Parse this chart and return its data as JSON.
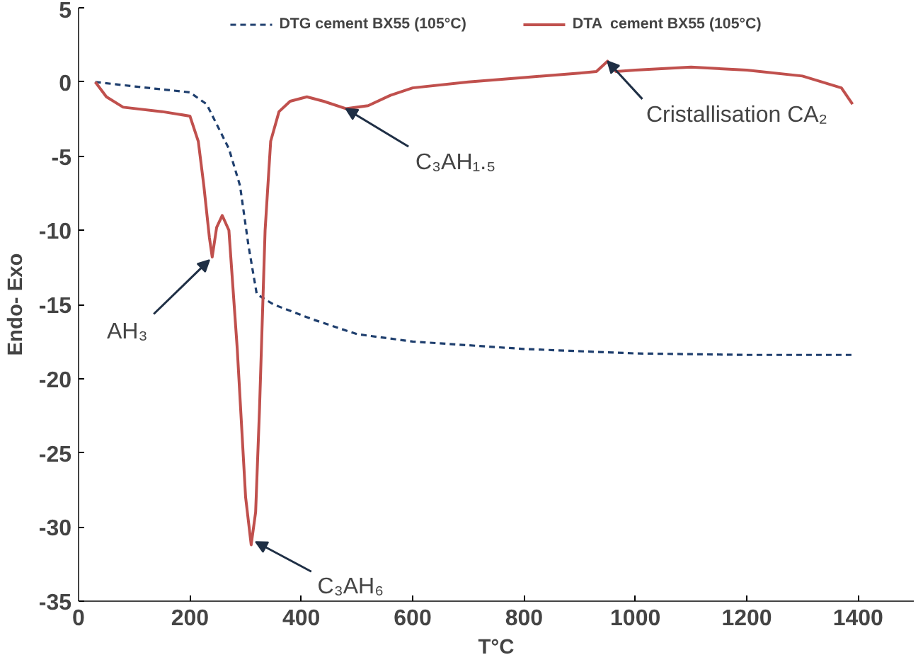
{
  "chart_data": {
    "type": "line",
    "xlabel": "T°C",
    "ylabel": "Endo- Exo",
    "xlim": [
      0,
      1500
    ],
    "ylim": [
      -35,
      5
    ],
    "xticks": [
      0,
      200,
      400,
      600,
      800,
      1000,
      1200,
      1400
    ],
    "yticks": [
      -35,
      -30,
      -25,
      -20,
      -15,
      -10,
      -5,
      0,
      5
    ],
    "grid": false,
    "legend": "top",
    "marker": "none",
    "series": [
      {
        "name": "DTG cement BX55 (105°C)",
        "color": "#1f3f6e",
        "line_style": "dashed",
        "x": [
          30,
          100,
          200,
          230,
          250,
          270,
          290,
          305,
          320,
          350,
          420,
          500,
          600,
          800,
          1000,
          1200,
          1390
        ],
        "values": [
          0,
          -0.3,
          -0.7,
          -1.5,
          -3,
          -4.5,
          -7,
          -11,
          -14.3,
          -15,
          -16,
          -17,
          -17.5,
          -18,
          -18.3,
          -18.4,
          -18.4
        ]
      },
      {
        "name": "DTA  cement BX55 (105°C)",
        "color": "#c0504d",
        "line_style": "solid",
        "x": [
          30,
          50,
          80,
          150,
          200,
          215,
          225,
          235,
          240,
          248,
          258,
          270,
          285,
          300,
          310,
          318,
          325,
          335,
          345,
          360,
          380,
          410,
          440,
          480,
          520,
          560,
          600,
          700,
          800,
          900,
          930,
          950,
          965,
          1000,
          1100,
          1200,
          1300,
          1370,
          1390
        ],
        "values": [
          0,
          -1,
          -1.7,
          -2,
          -2.3,
          -4,
          -7,
          -10.5,
          -11.8,
          -9.8,
          -9,
          -10,
          -18,
          -28,
          -31.2,
          -29,
          -22,
          -10,
          -4,
          -2,
          -1.3,
          -1,
          -1.3,
          -1.8,
          -1.6,
          -0.9,
          -0.4,
          0,
          0.3,
          0.6,
          0.7,
          1.4,
          0.7,
          0.8,
          1,
          0.8,
          0.4,
          -0.4,
          -1.5
        ]
      }
    ],
    "annotations": [
      {
        "text": "AH₃",
        "x": 235,
        "y": -12
      },
      {
        "text": "C₃AH₆",
        "x": 318,
        "y": -31
      },
      {
        "text": "C₃AH₁.₅",
        "x": 480,
        "y": -1.8
      },
      {
        "text": "Cristallisation CA₂",
        "x": 950,
        "y": 1.4
      }
    ]
  }
}
